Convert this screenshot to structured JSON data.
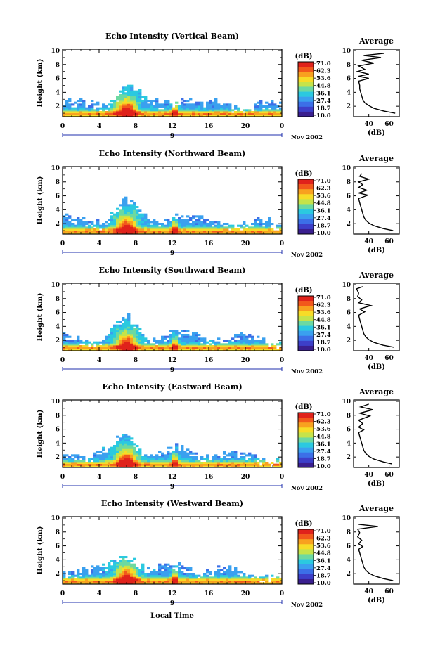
{
  "figure": {
    "xlabel": "Local Time",
    "date_label": "Nov 2002",
    "date_marker": "9",
    "ylabel": "Height (km)",
    "avg_title": "Average",
    "avg_xlabel": "(dB)",
    "colorbar_unit": "(dB)",
    "colorbar_labels": [
      "71.0",
      "62.3",
      "53.6",
      "44.8",
      "36.1",
      "27.4",
      "18.7",
      "10.0"
    ],
    "colorbar_colors": [
      "#e0221b",
      "#f2581b",
      "#f8a11f",
      "#f7dc27",
      "#c5e34a",
      "#6cd9a1",
      "#2bc9e0",
      "#3aa0ef",
      "#3c6fe7",
      "#3d3fc9",
      "#3a1f8f"
    ]
  },
  "chart_data": [
    {
      "type": "heatmap",
      "title": "Echo Intensity (Vertical Beam)",
      "xlabel": "Local Time",
      "ylabel": "Height (km)",
      "x_ticks": [
        "0",
        "4",
        "8",
        "12",
        "16",
        "20",
        "0"
      ],
      "y_ticks": [
        "2",
        "4",
        "6",
        "8",
        "10"
      ],
      "xlim": [
        0,
        24
      ],
      "ylim": [
        0.5,
        10.2
      ],
      "colorbar": {
        "unit": "(dB)",
        "min": 10.0,
        "max": 71.0
      },
      "profile": {
        "title": "Average",
        "xlabel": "(dB)",
        "x_ticks": [
          "40",
          "60"
        ],
        "y_ticks": [
          "2",
          "4",
          "6",
          "8",
          "10"
        ],
        "xlim": [
          25,
          70
        ],
        "points": [
          [
            66,
            1.0
          ],
          [
            55,
            1.3
          ],
          [
            45,
            1.7
          ],
          [
            40,
            2.1
          ],
          [
            36,
            2.5
          ],
          [
            34,
            3.0
          ],
          [
            33,
            3.5
          ],
          [
            32,
            4.0
          ],
          [
            31,
            4.5
          ],
          [
            31,
            5.0
          ],
          [
            30,
            5.6
          ],
          [
            40,
            6.0
          ],
          [
            30,
            6.3
          ],
          [
            40,
            6.6
          ],
          [
            29,
            7.0
          ],
          [
            36,
            7.3
          ],
          [
            30,
            7.8
          ],
          [
            45,
            8.2
          ],
          [
            33,
            8.6
          ],
          [
            52,
            9.0
          ],
          [
            35,
            9.3
          ],
          [
            55,
            9.6
          ]
        ]
      }
    },
    {
      "type": "heatmap",
      "title": "Echo Intensity (Northward Beam)",
      "xlabel": "Local Time",
      "ylabel": "Height (km)",
      "x_ticks": [
        "0",
        "4",
        "8",
        "12",
        "16",
        "20",
        "0"
      ],
      "y_ticks": [
        "2",
        "4",
        "6",
        "8",
        "10"
      ],
      "xlim": [
        0,
        24
      ],
      "ylim": [
        0.5,
        10.2
      ],
      "colorbar": {
        "unit": "(dB)",
        "min": 10.0,
        "max": 71.0
      },
      "profile": {
        "title": "Average",
        "xlabel": "(dB)",
        "x_ticks": [
          "40",
          "60"
        ],
        "y_ticks": [
          "2",
          "4",
          "6",
          "8",
          "10"
        ],
        "xlim": [
          25,
          70
        ],
        "points": [
          [
            64,
            1.0
          ],
          [
            54,
            1.3
          ],
          [
            45,
            1.7
          ],
          [
            40,
            2.1
          ],
          [
            37,
            2.5
          ],
          [
            35,
            3.0
          ],
          [
            34,
            3.5
          ],
          [
            33,
            4.0
          ],
          [
            32,
            4.5
          ],
          [
            31,
            5.0
          ],
          [
            30,
            5.6
          ],
          [
            39,
            6.1
          ],
          [
            30,
            6.4
          ],
          [
            38,
            6.8
          ],
          [
            30,
            7.2
          ],
          [
            34,
            7.6
          ],
          [
            30,
            8.0
          ],
          [
            40,
            8.4
          ],
          [
            31,
            8.8
          ],
          [
            33,
            9.2
          ]
        ]
      }
    },
    {
      "type": "heatmap",
      "title": "Echo Intensity (Southward Beam)",
      "xlabel": "Local Time",
      "ylabel": "Height (km)",
      "x_ticks": [
        "0",
        "4",
        "8",
        "12",
        "16",
        "20",
        "0"
      ],
      "y_ticks": [
        "2",
        "4",
        "6",
        "8",
        "10"
      ],
      "xlim": [
        0,
        24
      ],
      "ylim": [
        0.5,
        10.2
      ],
      "colorbar": {
        "unit": "(dB)",
        "min": 10.0,
        "max": 71.0
      },
      "profile": {
        "title": "Average",
        "xlabel": "(dB)",
        "x_ticks": [
          "40",
          "60"
        ],
        "y_ticks": [
          "2",
          "4",
          "6",
          "8",
          "10"
        ],
        "xlim": [
          25,
          70
        ],
        "points": [
          [
            65,
            1.0
          ],
          [
            54,
            1.3
          ],
          [
            45,
            1.7
          ],
          [
            40,
            2.1
          ],
          [
            37,
            2.5
          ],
          [
            35,
            3.0
          ],
          [
            34,
            3.5
          ],
          [
            33,
            4.0
          ],
          [
            32,
            4.5
          ],
          [
            31,
            5.0
          ],
          [
            30,
            5.6
          ],
          [
            36,
            6.1
          ],
          [
            31,
            6.5
          ],
          [
            42,
            7.0
          ],
          [
            30,
            7.4
          ],
          [
            33,
            7.8
          ],
          [
            29,
            8.3
          ],
          [
            30,
            8.8
          ],
          [
            28,
            9.4
          ],
          [
            34,
            9.7
          ]
        ]
      }
    },
    {
      "type": "heatmap",
      "title": "Echo Intensity (Eastward Beam)",
      "xlabel": "Local Time",
      "ylabel": "Height (km)",
      "x_ticks": [
        "0",
        "4",
        "8",
        "12",
        "16",
        "20",
        "0"
      ],
      "y_ticks": [
        "2",
        "4",
        "6",
        "8",
        "10"
      ],
      "xlim": [
        0,
        24
      ],
      "ylim": [
        0.5,
        10.2
      ],
      "colorbar": {
        "unit": "(dB)",
        "min": 10.0,
        "max": 71.0
      },
      "profile": {
        "title": "Average",
        "xlabel": "(dB)",
        "x_ticks": [
          "40",
          "60"
        ],
        "y_ticks": [
          "2",
          "4",
          "6",
          "8",
          "10"
        ],
        "xlim": [
          25,
          70
        ],
        "points": [
          [
            63,
            1.0
          ],
          [
            54,
            1.3
          ],
          [
            45,
            1.7
          ],
          [
            40,
            2.1
          ],
          [
            37,
            2.5
          ],
          [
            35,
            3.0
          ],
          [
            34,
            3.5
          ],
          [
            33,
            4.0
          ],
          [
            32,
            4.5
          ],
          [
            31,
            5.0
          ],
          [
            30,
            5.5
          ],
          [
            35,
            5.9
          ],
          [
            30,
            6.3
          ],
          [
            34,
            6.8
          ],
          [
            30,
            7.3
          ],
          [
            41,
            7.9
          ],
          [
            31,
            8.3
          ],
          [
            44,
            8.8
          ],
          [
            32,
            9.2
          ],
          [
            40,
            9.6
          ]
        ]
      }
    },
    {
      "type": "heatmap",
      "title": "Echo Intensity (Westward Beam)",
      "xlabel": "Local Time",
      "ylabel": "Height (km)",
      "x_ticks": [
        "0",
        "4",
        "8",
        "12",
        "16",
        "20",
        "0"
      ],
      "y_ticks": [
        "2",
        "4",
        "6",
        "8",
        "10"
      ],
      "xlim": [
        0,
        24
      ],
      "ylim": [
        0.5,
        10.2
      ],
      "colorbar": {
        "unit": "(dB)",
        "min": 10.0,
        "max": 71.0
      },
      "profile": {
        "title": "Average",
        "xlabel": "(dB)",
        "x_ticks": [
          "40",
          "60"
        ],
        "y_ticks": [
          "2",
          "4",
          "6",
          "8",
          "10"
        ],
        "xlim": [
          25,
          70
        ],
        "points": [
          [
            64,
            1.0
          ],
          [
            54,
            1.3
          ],
          [
            45,
            1.7
          ],
          [
            40,
            2.1
          ],
          [
            37,
            2.5
          ],
          [
            35,
            3.0
          ],
          [
            34,
            3.5
          ],
          [
            33,
            4.0
          ],
          [
            32,
            4.5
          ],
          [
            31,
            5.0
          ],
          [
            30,
            5.5
          ],
          [
            34,
            5.9
          ],
          [
            30,
            6.3
          ],
          [
            33,
            6.8
          ],
          [
            29,
            7.3
          ],
          [
            31,
            7.9
          ],
          [
            29,
            8.4
          ],
          [
            49,
            8.8
          ],
          [
            30,
            9.1
          ]
        ]
      }
    }
  ]
}
